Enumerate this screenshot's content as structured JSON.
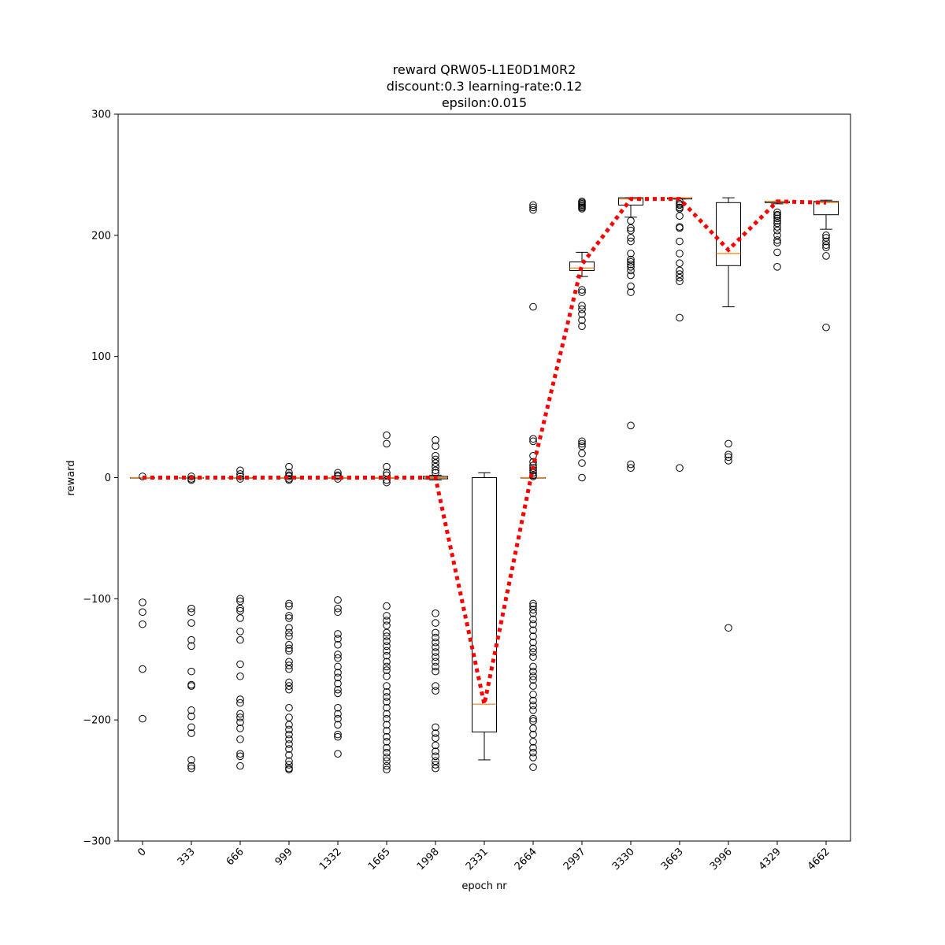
{
  "chart_data": {
    "type": "box",
    "title": [
      "reward QRW05-L1E0D1M0R2",
      "discount:0.3 learning-rate:0.12",
      "epsilon:0.015"
    ],
    "xlabel": "epoch nr",
    "ylabel": "reward",
    "ylim": [
      -300,
      300
    ],
    "yticks": [
      -300,
      -200,
      -100,
      0,
      100,
      200,
      300
    ],
    "grid": false,
    "categories": [
      "0",
      "333",
      "666",
      "999",
      "1332",
      "1665",
      "1998",
      "2331",
      "2664",
      "2997",
      "3330",
      "3663",
      "3996",
      "4329",
      "4662"
    ],
    "boxes": [
      {
        "q1": 0,
        "median": 0,
        "q3": 0,
        "whisker_low": 0,
        "whisker_high": 0,
        "outliers": [
          1,
          -103,
          -111,
          -121,
          -158,
          -199
        ]
      },
      {
        "q1": 0,
        "median": 0,
        "q3": 0,
        "whisker_low": 0,
        "whisker_high": 0,
        "outliers": [
          1,
          -1,
          -2,
          -108,
          -111,
          -120,
          -134,
          -139,
          -160,
          -171,
          -172,
          -192,
          -197,
          -206,
          -211,
          -233,
          -238,
          -240
        ]
      },
      {
        "q1": 0,
        "median": 0,
        "q3": 0,
        "whisker_low": 0,
        "whisker_high": 0,
        "outliers": [
          6,
          3,
          1,
          -1,
          -100,
          -102,
          -108,
          -110,
          -116,
          -127,
          -134,
          -154,
          -164,
          -183,
          -186,
          -195,
          -198,
          -202,
          -207,
          -216,
          -228,
          -230,
          -238
        ]
      },
      {
        "q1": 0,
        "median": 0,
        "q3": 0,
        "whisker_low": 0,
        "whisker_high": 0,
        "outliers": [
          9,
          4,
          2,
          1,
          -1,
          -2,
          -104,
          -106,
          -114,
          -116,
          -124,
          -128,
          -131,
          -138,
          -141,
          -143,
          -152,
          -155,
          -158,
          -169,
          -172,
          -175,
          -190,
          -198,
          -204,
          -208,
          -212,
          -216,
          -220,
          -224,
          -229,
          -234,
          -237,
          -240,
          -241
        ]
      },
      {
        "q1": 0,
        "median": 0,
        "q3": 0,
        "whisker_low": 0,
        "whisker_high": 0,
        "outliers": [
          4,
          2,
          1,
          -1,
          -101,
          -108,
          -111,
          -129,
          -133,
          -138,
          -146,
          -149,
          -156,
          -161,
          -165,
          -170,
          -175,
          -178,
          -190,
          -195,
          -199,
          -204,
          -212,
          -214,
          -228
        ]
      },
      {
        "q1": 0,
        "median": 0,
        "q3": 0,
        "whisker_low": 0,
        "whisker_high": 0,
        "outliers": [
          35,
          28,
          9,
          4,
          2,
          -2,
          -4,
          -106,
          -114,
          -118,
          -122,
          -128,
          -131,
          -135,
          -139,
          -143,
          -147,
          -152,
          -156,
          -159,
          -164,
          -172,
          -177,
          -181,
          -185,
          -190,
          -195,
          -199,
          -204,
          -209,
          -214,
          -218,
          -223,
          -227,
          -231,
          -234,
          -238,
          -241
        ]
      },
      {
        "q1": -1,
        "median": 0,
        "q3": 1,
        "whisker_low": -2,
        "whisker_high": 2,
        "outliers": [
          31,
          26,
          18,
          15,
          12,
          9,
          6,
          4,
          -112,
          -120,
          -128,
          -132,
          -136,
          -140,
          -144,
          -148,
          -152,
          -156,
          -160,
          -172,
          -176,
          -206,
          -211,
          -215,
          -221,
          -226,
          -230,
          -234,
          -237,
          -240
        ]
      },
      {
        "q1": -210,
        "median": -187,
        "q3": 0,
        "whisker_low": -233,
        "whisker_high": 4,
        "outliers": []
      },
      {
        "q1": 0,
        "median": 0,
        "q3": 0,
        "whisker_low": 0,
        "whisker_high": 0,
        "outliers": [
          225,
          223,
          221,
          141,
          32,
          30,
          18,
          13,
          10,
          8,
          6,
          4,
          2,
          1,
          -104,
          -106,
          -109,
          -112,
          -117,
          -121,
          -126,
          -131,
          -136,
          -141,
          -144,
          -148,
          -156,
          -160,
          -164,
          -167,
          -172,
          -179,
          -184,
          -188,
          -192,
          -199,
          -201,
          -207,
          -212,
          -218,
          -223,
          -227,
          -231,
          -239
        ]
      },
      {
        "q1": 171,
        "median": 173,
        "q3": 178,
        "whisker_low": 166,
        "whisker_high": 186,
        "outliers": [
          228,
          227,
          226,
          225,
          224,
          223,
          222,
          155,
          153,
          142,
          139,
          135,
          130,
          125,
          30,
          28,
          26,
          20,
          12,
          0
        ]
      },
      {
        "q1": 225,
        "median": 230,
        "q3": 231,
        "whisker_low": 215,
        "whisker_high": 231,
        "outliers": [
          212,
          206,
          204,
          198,
          195,
          185,
          180,
          178,
          176,
          174,
          171,
          167,
          158,
          153,
          43,
          11,
          8
        ]
      },
      {
        "q1": 230,
        "median": 231,
        "q3": 231,
        "whisker_low": 230,
        "whisker_high": 231,
        "outliers": [
          228,
          226,
          225,
          223,
          222,
          216,
          207,
          206,
          195,
          185,
          177,
          171,
          168,
          165,
          162,
          132,
          8
        ]
      },
      {
        "q1": 175,
        "median": 185,
        "q3": 227,
        "whisker_low": 141,
        "whisker_high": 231,
        "outliers": [
          28,
          19,
          17,
          14,
          -124
        ]
      },
      {
        "q1": 227,
        "median": 228,
        "q3": 228,
        "whisker_low": 226,
        "whisker_high": 228,
        "outliers": [
          219,
          217,
          216,
          214,
          212,
          210,
          207,
          204,
          200,
          196,
          194,
          186,
          174
        ]
      },
      {
        "q1": 217,
        "median": 227,
        "q3": 228,
        "whisker_low": 205,
        "whisker_high": 229,
        "outliers": [
          200,
          198,
          195,
          192,
          190,
          183,
          124
        ]
      }
    ],
    "mean_line": {
      "values": [
        0,
        0,
        0,
        0,
        0,
        0,
        0,
        -187,
        9,
        176,
        230,
        230,
        188,
        228,
        227
      ],
      "color": "#ff0000",
      "style": "dotted"
    },
    "colors": {
      "box": "#000000",
      "median": "#ff7f0e",
      "mean_line": "#ff0000",
      "outlier": "#000000"
    }
  }
}
